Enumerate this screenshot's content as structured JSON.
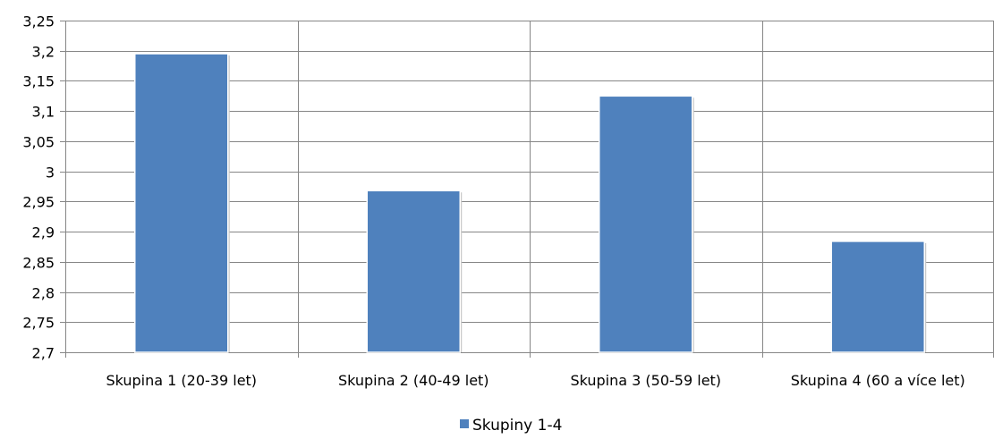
{
  "chart_data": {
    "type": "bar",
    "categories": [
      "Skupina 1 (20-39 let)",
      "Skupina 2 (40-49 let)",
      "Skupina 3 (50-59 let)",
      "Skupina 4 (60 a více let)"
    ],
    "series": [
      {
        "name": "Skupiny 1-4",
        "values": [
          3.195,
          2.968,
          3.125,
          2.884
        ],
        "color": "#4F81BD"
      }
    ],
    "yticks": [
      "2,7",
      "2,75",
      "2,8",
      "2,85",
      "2,9",
      "2,95",
      "3",
      "3,05",
      "3,1",
      "3,15",
      "3,2",
      "3,25"
    ],
    "ylim": [
      2.7,
      3.25
    ],
    "ystep": 0.05,
    "grid": {
      "horizontal": true,
      "vertical_category_separators": true
    },
    "legend": {
      "position": "bottom"
    },
    "colors": {
      "grid": "#868686",
      "axis": "#868686",
      "bar": "#4F81BD"
    }
  }
}
